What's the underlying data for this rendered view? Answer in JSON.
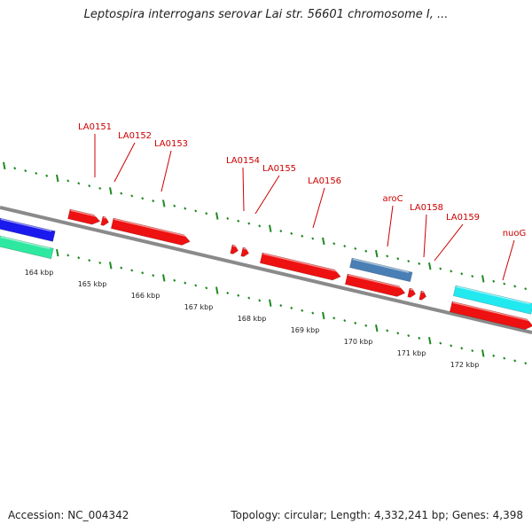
{
  "title": "Leptospira interrogans serovar Lai str. 56601 chromosome I, ...",
  "footer": {
    "accession": "Accession: NC_004342",
    "summary": "Topology: circular; Length: 4,332,241 bp; Genes: 4,398"
  },
  "colors": {
    "backbone": "#8a8a8a",
    "tick": "#1f8a1f",
    "label": "#cc0000",
    "gene_red": "#ee1111",
    "gene_blue": "#1a1aee",
    "gene_teal": "#2ee8a0",
    "gene_steel": "#4a7fb5",
    "gene_cyan": "#22e8f0"
  },
  "tick_labels": [
    "164 kbp",
    "165 kbp",
    "166 kbp",
    "167 kbp",
    "168 kbp",
    "169 kbp",
    "170 kbp",
    "171 kbp",
    "172 kbp"
  ],
  "gene_labels": [
    "LA0151",
    "LA0152",
    "LA0153",
    "LA0154",
    "LA0155",
    "LA0156",
    "aroC",
    "LA0158",
    "LA0159",
    "nuoG"
  ]
}
